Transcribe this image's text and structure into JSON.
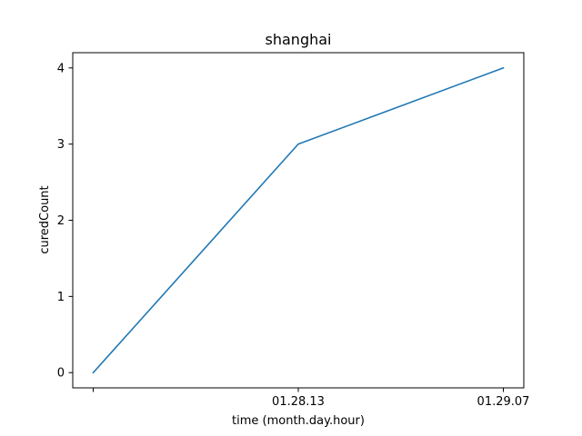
{
  "chart_data": {
    "type": "line",
    "title": "shanghai",
    "xlabel": "time (month.day.hour)",
    "ylabel": "curedCount",
    "x_tick_labels": [
      "",
      "01.28.13",
      "01.29.07"
    ],
    "y_ticks": [
      0,
      1,
      2,
      3,
      4
    ],
    "ylim": [
      -0.2,
      4.2
    ],
    "grid": false,
    "legend": "none",
    "series": [
      {
        "color": "#1f77b4",
        "values": [
          0,
          3,
          4
        ]
      }
    ]
  }
}
